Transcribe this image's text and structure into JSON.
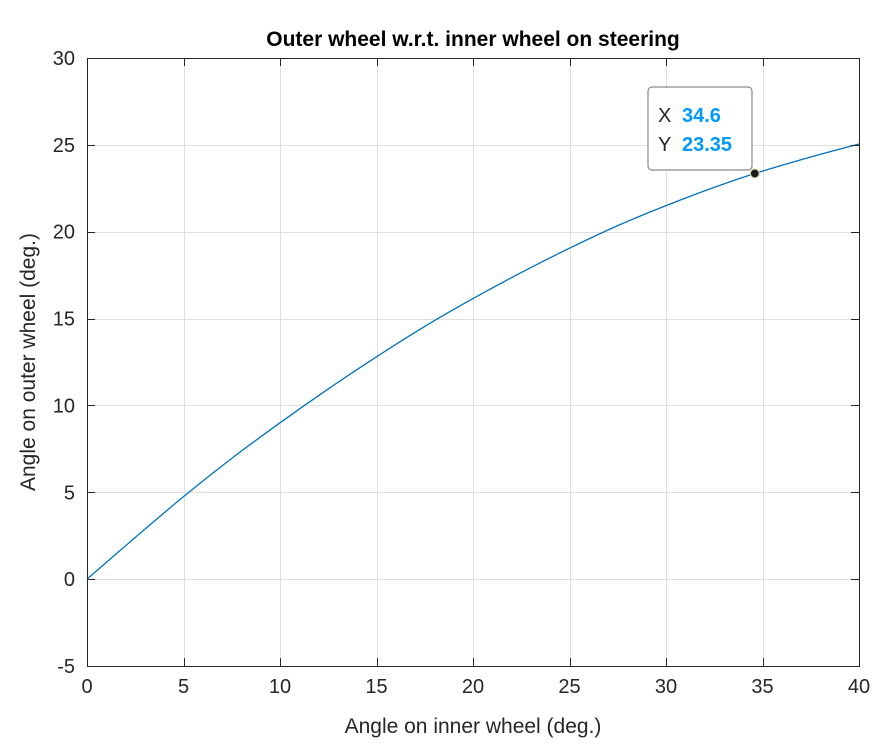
{
  "chart_data": {
    "type": "line",
    "title": "Outer wheel w.r.t. inner wheel on steering",
    "xlabel": "Angle on inner wheel (deg.)",
    "ylabel": "Angle on outer wheel (deg.)",
    "xlim": [
      0,
      40
    ],
    "ylim": [
      -5,
      30
    ],
    "x_ticks": [
      0,
      5,
      10,
      15,
      20,
      25,
      30,
      35,
      40
    ],
    "y_ticks": [
      -5,
      0,
      5,
      10,
      15,
      20,
      25,
      30
    ],
    "grid": true,
    "line_color": "#0072BD",
    "series": [
      {
        "x": [
          0,
          2.5,
          5,
          7.5,
          10,
          12.5,
          15,
          17.5,
          20,
          22.5,
          25,
          27.5,
          30,
          32.5,
          34.6,
          37.5,
          40
        ],
        "values": [
          0,
          2.4,
          4.75,
          6.95,
          9.0,
          10.95,
          12.8,
          14.55,
          16.15,
          17.65,
          19.05,
          20.35,
          21.5,
          22.55,
          23.35,
          24.3,
          25.05
        ]
      }
    ],
    "datatip": {
      "x_key": "X",
      "x_value": "34.6",
      "y_key": "Y",
      "y_value": "23.35",
      "value_color": "#0099FF"
    }
  }
}
